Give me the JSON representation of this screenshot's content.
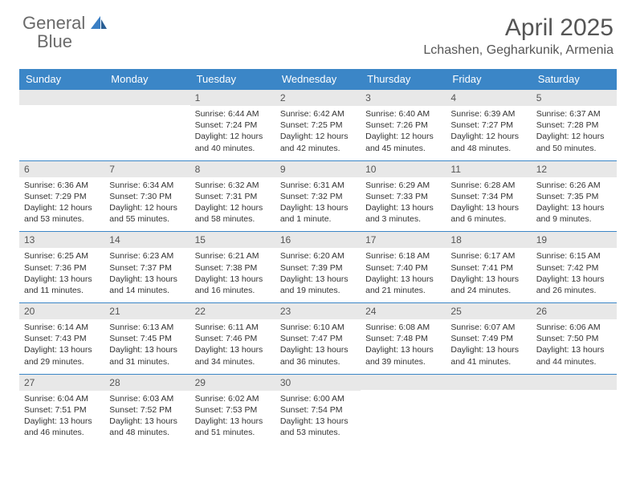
{
  "logo": {
    "text1": "General",
    "text2": "Blue"
  },
  "title": "April 2025",
  "location": "Lchashen, Gegharkunik, Armenia",
  "colors": {
    "header_bg": "#3b86c7",
    "header_text": "#ffffff",
    "daynum_bg": "#e8e8e8",
    "border": "#3b86c7",
    "logo_gray": "#6a6a6a",
    "logo_blue": "#3b7fc4"
  },
  "weekdays": [
    "Sunday",
    "Monday",
    "Tuesday",
    "Wednesday",
    "Thursday",
    "Friday",
    "Saturday"
  ],
  "weeks": [
    [
      {
        "n": "",
        "sr": "",
        "ss": "",
        "dl": ""
      },
      {
        "n": "",
        "sr": "",
        "ss": "",
        "dl": ""
      },
      {
        "n": "1",
        "sr": "Sunrise: 6:44 AM",
        "ss": "Sunset: 7:24 PM",
        "dl": "Daylight: 12 hours and 40 minutes."
      },
      {
        "n": "2",
        "sr": "Sunrise: 6:42 AM",
        "ss": "Sunset: 7:25 PM",
        "dl": "Daylight: 12 hours and 42 minutes."
      },
      {
        "n": "3",
        "sr": "Sunrise: 6:40 AM",
        "ss": "Sunset: 7:26 PM",
        "dl": "Daylight: 12 hours and 45 minutes."
      },
      {
        "n": "4",
        "sr": "Sunrise: 6:39 AM",
        "ss": "Sunset: 7:27 PM",
        "dl": "Daylight: 12 hours and 48 minutes."
      },
      {
        "n": "5",
        "sr": "Sunrise: 6:37 AM",
        "ss": "Sunset: 7:28 PM",
        "dl": "Daylight: 12 hours and 50 minutes."
      }
    ],
    [
      {
        "n": "6",
        "sr": "Sunrise: 6:36 AM",
        "ss": "Sunset: 7:29 PM",
        "dl": "Daylight: 12 hours and 53 minutes."
      },
      {
        "n": "7",
        "sr": "Sunrise: 6:34 AM",
        "ss": "Sunset: 7:30 PM",
        "dl": "Daylight: 12 hours and 55 minutes."
      },
      {
        "n": "8",
        "sr": "Sunrise: 6:32 AM",
        "ss": "Sunset: 7:31 PM",
        "dl": "Daylight: 12 hours and 58 minutes."
      },
      {
        "n": "9",
        "sr": "Sunrise: 6:31 AM",
        "ss": "Sunset: 7:32 PM",
        "dl": "Daylight: 13 hours and 1 minute."
      },
      {
        "n": "10",
        "sr": "Sunrise: 6:29 AM",
        "ss": "Sunset: 7:33 PM",
        "dl": "Daylight: 13 hours and 3 minutes."
      },
      {
        "n": "11",
        "sr": "Sunrise: 6:28 AM",
        "ss": "Sunset: 7:34 PM",
        "dl": "Daylight: 13 hours and 6 minutes."
      },
      {
        "n": "12",
        "sr": "Sunrise: 6:26 AM",
        "ss": "Sunset: 7:35 PM",
        "dl": "Daylight: 13 hours and 9 minutes."
      }
    ],
    [
      {
        "n": "13",
        "sr": "Sunrise: 6:25 AM",
        "ss": "Sunset: 7:36 PM",
        "dl": "Daylight: 13 hours and 11 minutes."
      },
      {
        "n": "14",
        "sr": "Sunrise: 6:23 AM",
        "ss": "Sunset: 7:37 PM",
        "dl": "Daylight: 13 hours and 14 minutes."
      },
      {
        "n": "15",
        "sr": "Sunrise: 6:21 AM",
        "ss": "Sunset: 7:38 PM",
        "dl": "Daylight: 13 hours and 16 minutes."
      },
      {
        "n": "16",
        "sr": "Sunrise: 6:20 AM",
        "ss": "Sunset: 7:39 PM",
        "dl": "Daylight: 13 hours and 19 minutes."
      },
      {
        "n": "17",
        "sr": "Sunrise: 6:18 AM",
        "ss": "Sunset: 7:40 PM",
        "dl": "Daylight: 13 hours and 21 minutes."
      },
      {
        "n": "18",
        "sr": "Sunrise: 6:17 AM",
        "ss": "Sunset: 7:41 PM",
        "dl": "Daylight: 13 hours and 24 minutes."
      },
      {
        "n": "19",
        "sr": "Sunrise: 6:15 AM",
        "ss": "Sunset: 7:42 PM",
        "dl": "Daylight: 13 hours and 26 minutes."
      }
    ],
    [
      {
        "n": "20",
        "sr": "Sunrise: 6:14 AM",
        "ss": "Sunset: 7:43 PM",
        "dl": "Daylight: 13 hours and 29 minutes."
      },
      {
        "n": "21",
        "sr": "Sunrise: 6:13 AM",
        "ss": "Sunset: 7:45 PM",
        "dl": "Daylight: 13 hours and 31 minutes."
      },
      {
        "n": "22",
        "sr": "Sunrise: 6:11 AM",
        "ss": "Sunset: 7:46 PM",
        "dl": "Daylight: 13 hours and 34 minutes."
      },
      {
        "n": "23",
        "sr": "Sunrise: 6:10 AM",
        "ss": "Sunset: 7:47 PM",
        "dl": "Daylight: 13 hours and 36 minutes."
      },
      {
        "n": "24",
        "sr": "Sunrise: 6:08 AM",
        "ss": "Sunset: 7:48 PM",
        "dl": "Daylight: 13 hours and 39 minutes."
      },
      {
        "n": "25",
        "sr": "Sunrise: 6:07 AM",
        "ss": "Sunset: 7:49 PM",
        "dl": "Daylight: 13 hours and 41 minutes."
      },
      {
        "n": "26",
        "sr": "Sunrise: 6:06 AM",
        "ss": "Sunset: 7:50 PM",
        "dl": "Daylight: 13 hours and 44 minutes."
      }
    ],
    [
      {
        "n": "27",
        "sr": "Sunrise: 6:04 AM",
        "ss": "Sunset: 7:51 PM",
        "dl": "Daylight: 13 hours and 46 minutes."
      },
      {
        "n": "28",
        "sr": "Sunrise: 6:03 AM",
        "ss": "Sunset: 7:52 PM",
        "dl": "Daylight: 13 hours and 48 minutes."
      },
      {
        "n": "29",
        "sr": "Sunrise: 6:02 AM",
        "ss": "Sunset: 7:53 PM",
        "dl": "Daylight: 13 hours and 51 minutes."
      },
      {
        "n": "30",
        "sr": "Sunrise: 6:00 AM",
        "ss": "Sunset: 7:54 PM",
        "dl": "Daylight: 13 hours and 53 minutes."
      },
      {
        "n": "",
        "sr": "",
        "ss": "",
        "dl": ""
      },
      {
        "n": "",
        "sr": "",
        "ss": "",
        "dl": ""
      },
      {
        "n": "",
        "sr": "",
        "ss": "",
        "dl": ""
      }
    ]
  ]
}
